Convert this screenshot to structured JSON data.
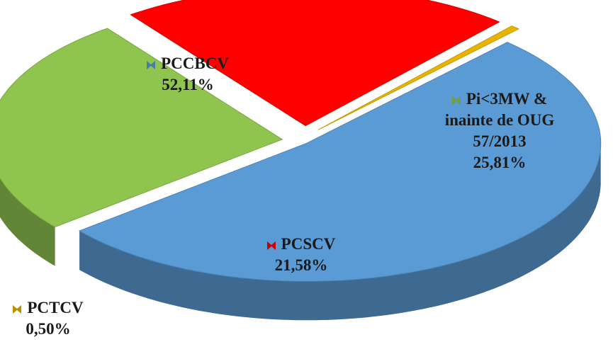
{
  "chart_data": {
    "type": "pie",
    "categories": [
      "PCCBCV",
      "Pi<3MW & inainte de OUG 57/2013",
      "PCSCV",
      "PCTCV"
    ],
    "values": [
      52.11,
      25.81,
      21.58,
      0.5
    ],
    "value_labels": [
      "52,11%",
      "25,81%",
      "21,58%",
      "0,50%"
    ],
    "colors": [
      "#5b9bd5",
      "#8fc54f",
      "#ff0000",
      "#e8b400"
    ]
  }
}
